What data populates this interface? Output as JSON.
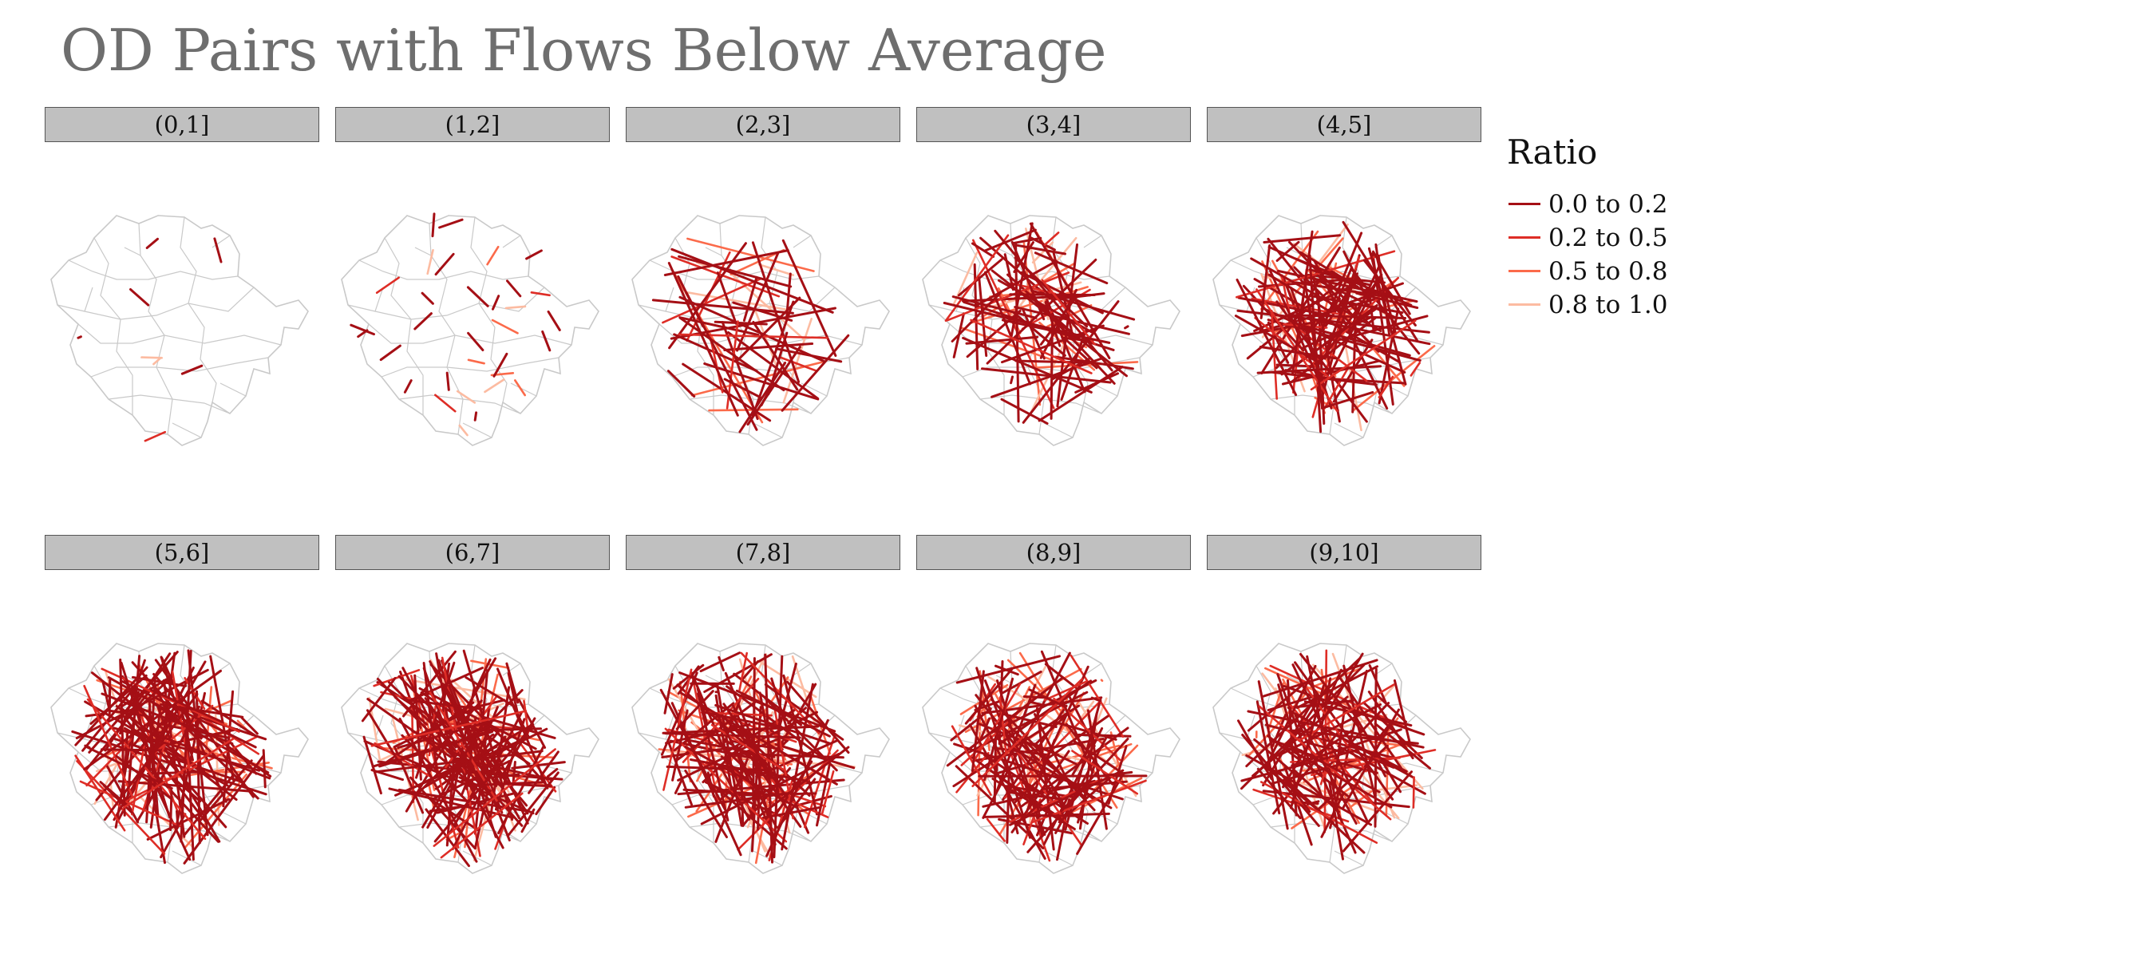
{
  "title": "OD Pairs with Flows Below Average",
  "panels": [
    {
      "label": "(0,1]",
      "flows": 8
    },
    {
      "label": "(1,2]",
      "flows": 32
    },
    {
      "label": "(2,3]",
      "flows": 55
    },
    {
      "label": "(3,4]",
      "flows": 90
    },
    {
      "label": "(4,5]",
      "flows": 120
    },
    {
      "label": "(5,6]",
      "flows": 140
    },
    {
      "label": "(6,7]",
      "flows": 160
    },
    {
      "label": "(7,8]",
      "flows": 150
    },
    {
      "label": "(8,9]",
      "flows": 140
    },
    {
      "label": "(9,10]",
      "flows": 120
    }
  ],
  "legend": {
    "title": "Ratio",
    "items": [
      {
        "label": "0.0 to 0.2",
        "color": "#a50f15"
      },
      {
        "label": "0.2 to 0.5",
        "color": "#de2d26"
      },
      {
        "label": "0.5 to 0.8",
        "color": "#fb6a4a"
      },
      {
        "label": "0.8 to 1.0",
        "color": "#fcbba1"
      }
    ]
  },
  "colors": {
    "boundary": "#c9c9c9",
    "header_bg": "#c0c0c0"
  }
}
